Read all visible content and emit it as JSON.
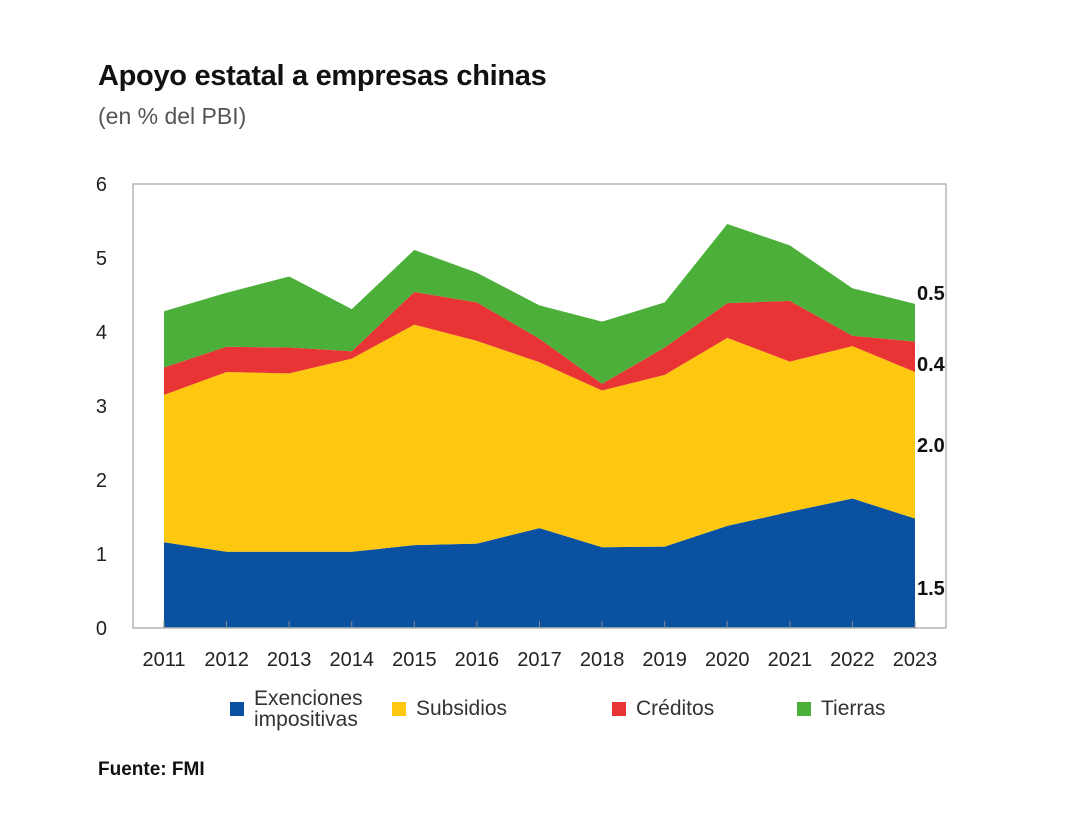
{
  "chart_data": {
    "type": "area",
    "stacked": true,
    "title": "Apoyo estatal a empresas chinas",
    "subtitle": "(en % del PBI)",
    "source": "Fuente: FMI",
    "xlabel": "",
    "ylabel": "",
    "ylim": [
      0,
      6
    ],
    "yticks": [
      "0",
      "1",
      "2",
      "3",
      "4",
      "5",
      "6"
    ],
    "categories": [
      "2011",
      "2012",
      "2013",
      "2014",
      "2015",
      "2016",
      "2017",
      "2018",
      "2019",
      "2020",
      "2021",
      "2022",
      "2023"
    ],
    "series": [
      {
        "name": "Exenciones impositivas",
        "legend_label": "Exenciones\nimpositivas",
        "color": "#0a52a1",
        "values": [
          1.16,
          1.03,
          1.03,
          1.03,
          1.12,
          1.14,
          1.35,
          1.09,
          1.1,
          1.38,
          1.57,
          1.75,
          1.48
        ],
        "end_label": "1.5"
      },
      {
        "name": "Subsidios",
        "legend_label": "Subsidios",
        "color": "#fdc80f",
        "values": [
          1.99,
          2.43,
          2.41,
          2.61,
          2.98,
          2.74,
          2.24,
          2.12,
          2.32,
          2.54,
          2.03,
          2.06,
          1.98
        ],
        "end_label": "2.0"
      },
      {
        "name": "Créditos",
        "legend_label": "Créditos",
        "color": "#e83434",
        "values": [
          0.37,
          0.34,
          0.35,
          0.1,
          0.44,
          0.52,
          0.32,
          0.09,
          0.37,
          0.47,
          0.82,
          0.14,
          0.41
        ],
        "end_label": "0.4"
      },
      {
        "name": "Tierras",
        "legend_label": "Tierras",
        "color": "#4caf3a",
        "values": [
          0.76,
          0.73,
          0.96,
          0.57,
          0.57,
          0.4,
          0.45,
          0.84,
          0.61,
          1.07,
          0.75,
          0.64,
          0.51
        ],
        "end_label": "0.5"
      }
    ],
    "legend_position": "bottom",
    "grid": false
  }
}
